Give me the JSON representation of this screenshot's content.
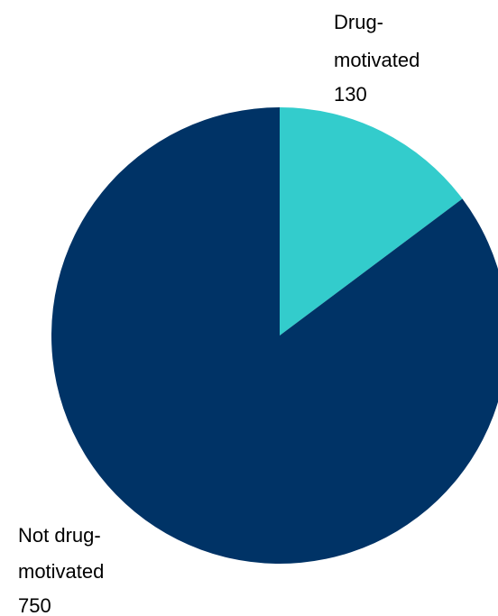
{
  "chart_data": {
    "type": "pie",
    "categories": [
      "Drug-motivated",
      "Not drug-motivated"
    ],
    "values": [
      130,
      750
    ],
    "colors": [
      "#33cccc",
      "#003366"
    ],
    "labels": [
      {
        "lines": [
          "Drug-",
          "motivated"
        ],
        "value_text": "130"
      },
      {
        "lines": [
          "Not drug-",
          "motivated"
        ],
        "value_text": "750"
      }
    ]
  }
}
